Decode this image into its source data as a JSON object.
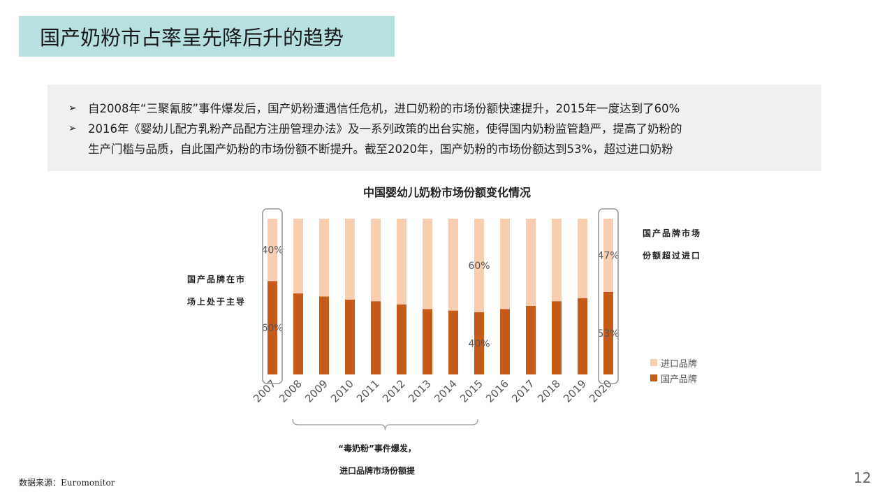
{
  "title": "国产奶粉市占率呈先降后升的趋势",
  "summary": {
    "bullet_mark": "➢",
    "bullets": [
      {
        "text": "自2008年“三聚氰胺”事件爆发后，国产奶粉遭遇信任危机，进口奶粉的市场份额快速提升，2015年一度达到了60%"
      },
      {
        "line1": "2016年《婴幼儿配方乳粉产品配方注册管理办法》及一系列政策的出台实施，使得国内奶粉监管趋严，提高了奶粉的",
        "line2": "生产门槛与品质，自此国产奶粉的市场份额不断提升。截至2020年，国产奶粉的市场份额达到53%，超过进口奶粉"
      }
    ]
  },
  "annotations": {
    "left_line1": "国产品牌在市",
    "left_line2": "场上处于主导",
    "right_line1": "国产品牌市场",
    "right_line2": "份额超过进口",
    "bracket_line1": "“毒奶粉”事件爆发，",
    "bracket_line2": "进口品牌市场份额提"
  },
  "legend": {
    "imported": "进口品牌",
    "domestic": "国产品牌"
  },
  "source": "数据来源：Euromonitor",
  "page_number": "12",
  "colors": {
    "domestic": "#c55a19",
    "imported": "#f9cdb0",
    "title_bg": "#b7e1e0",
    "summary_bg": "#f0f0f0",
    "highlight_box": "#999999"
  },
  "chart_data": {
    "type": "bar",
    "stacked": true,
    "title": "中国婴幼儿奶粉市场份额变化情况",
    "categories": [
      "2007",
      "2008",
      "2009",
      "2010",
      "2011",
      "2012",
      "2013",
      "2014",
      "2015",
      "2016",
      "2017",
      "2018",
      "2019",
      "2020"
    ],
    "series": [
      {
        "name": "国产品牌",
        "values": [
          60,
          52,
          50,
          48,
          47,
          45,
          42,
          41,
          40,
          42,
          44,
          47,
          49,
          53
        ]
      },
      {
        "name": "进口品牌",
        "values": [
          40,
          48,
          50,
          52,
          53,
          55,
          58,
          59,
          60,
          58,
          56,
          53,
          51,
          47
        ]
      }
    ],
    "data_labels": [
      {
        "category": "2007",
        "series": "进口品牌",
        "text": "40%"
      },
      {
        "category": "2007",
        "series": "国产品牌",
        "text": "60%"
      },
      {
        "category": "2015",
        "series": "进口品牌",
        "text": "60%"
      },
      {
        "category": "2015",
        "series": "国产品牌",
        "text": "40%"
      },
      {
        "category": "2020",
        "series": "进口品牌",
        "text": "47%"
      },
      {
        "category": "2020",
        "series": "国产品牌",
        "text": "53%"
      }
    ],
    "highlighted_categories": [
      "2007",
      "2020"
    ],
    "bracket_range": [
      "2008",
      "2015"
    ],
    "ylim": [
      0,
      100
    ],
    "grid": false,
    "legend_position": "right"
  }
}
